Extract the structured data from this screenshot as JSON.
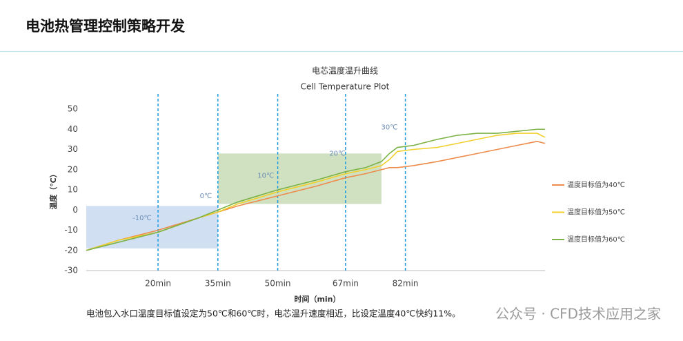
{
  "slide_title": "电池热管理控制策略开发",
  "chart_data": {
    "type": "line",
    "title": "电芯温度温升曲线",
    "subtitle": "Cell Temperature Plot",
    "x_label": "时间（min）",
    "y_label": "温度（℃）",
    "x": [
      2,
      10,
      20,
      30,
      35,
      40,
      50,
      60,
      67,
      72,
      76,
      78,
      80,
      84,
      90,
      95,
      100,
      105,
      110,
      115,
      117
    ],
    "series": [
      {
        "name": "温度目标值为40℃",
        "color": "#ee8a4a",
        "values": [
          -20,
          -15,
          -10,
          -4,
          -1,
          2,
          7,
          12,
          16,
          18,
          20,
          21,
          21,
          22,
          24,
          26,
          28,
          30,
          32,
          34,
          33
        ]
      },
      {
        "name": "温度目标值为50℃",
        "color": "#f2d02c",
        "values": [
          -20,
          -15,
          -11,
          -4,
          -1,
          3,
          9,
          14,
          18,
          20,
          22,
          25,
          29,
          30,
          31,
          33,
          35,
          37,
          38,
          38,
          36
        ]
      },
      {
        "name": "温度目标值为60℃",
        "color": "#7cb347",
        "values": [
          -20,
          -16,
          -11,
          -4,
          0,
          4,
          10,
          15,
          19,
          21,
          24,
          28,
          31,
          32,
          35,
          37,
          38,
          38,
          39,
          40,
          40
        ]
      }
    ],
    "xlim": [
      2,
      117
    ],
    "ylim": [
      -30,
      50
    ],
    "xticks": [
      {
        "value": 20,
        "label": "20min"
      },
      {
        "value": 35,
        "label": "35min"
      },
      {
        "value": 50,
        "label": "50min"
      },
      {
        "value": 67,
        "label": "67min"
      },
      {
        "value": 82,
        "label": "82min"
      }
    ],
    "yticks": [
      -30,
      -20,
      -10,
      0,
      10,
      20,
      30,
      40,
      50
    ],
    "xtick_line_color": "#1e9be0",
    "regions": [
      {
        "x": [
          2,
          35
        ],
        "y": [
          -19,
          2
        ],
        "color": "#a9c4e6"
      },
      {
        "x": [
          35,
          76
        ],
        "y": [
          3,
          28
        ],
        "color": "#a9c98f"
      }
    ],
    "annotations": [
      {
        "text": "-10℃",
        "x": 16,
        "y": -4
      },
      {
        "text": "0℃",
        "x": 32,
        "y": 7
      },
      {
        "text": "10℃",
        "x": 47,
        "y": 17
      },
      {
        "text": "20℃",
        "x": 65,
        "y": 28
      },
      {
        "text": "30℃",
        "x": 78,
        "y": 41
      }
    ],
    "legend": "right",
    "grid": false
  },
  "caption": "电池包入水口温度目标值设定为50℃和60℃时，电芯温升速度相近，比设定温度40℃快约11%。",
  "watermark": "公众号 · CFD技术应用之家"
}
